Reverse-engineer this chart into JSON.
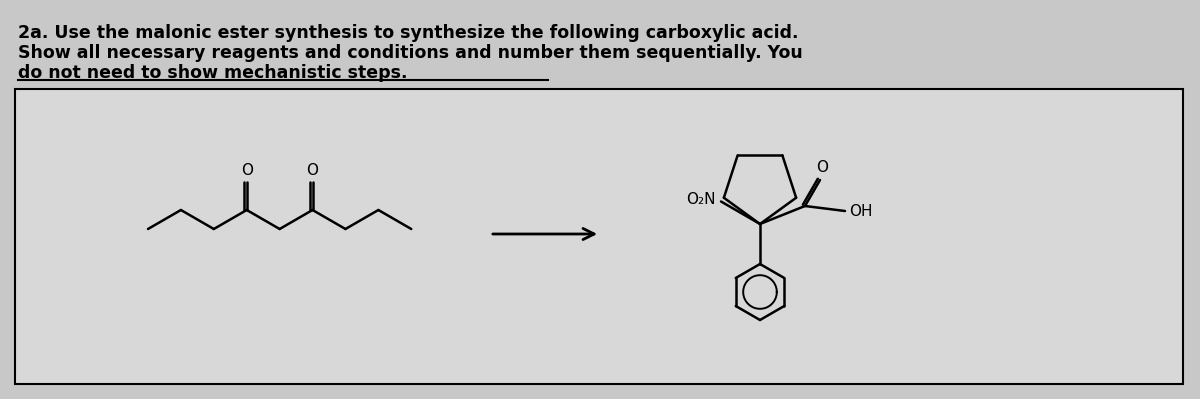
{
  "title_lines": [
    "2a. Use the malonic ester synthesis to synthesize the following carboxylic acid.",
    "Show all necessary reagents and conditions and number them sequentially. You",
    "do not need to show mechanistic steps."
  ],
  "bg_color": "#c8c8c8",
  "bg_box_color": "#d8d8d8",
  "text_color": "#000000",
  "title_fontsize": 12.5,
  "fig_width": 12.0,
  "fig_height": 3.99,
  "dpi": 100
}
